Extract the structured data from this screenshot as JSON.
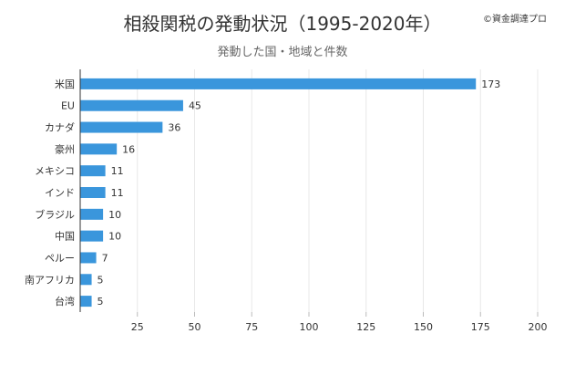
{
  "title": "相殺関税の発動状況（1995-2020年）",
  "subtitle": "発動した国・地域と件数",
  "copyright": "©資金調達プロ",
  "colors": {
    "bar": "#3a96dc",
    "grid": "#e8e8e8",
    "axis": "#333333",
    "text": "#333333"
  },
  "chart_data": {
    "type": "bar",
    "orientation": "horizontal",
    "categories": [
      "米国",
      "EU",
      "カナダ",
      "豪州",
      "メキシコ",
      "インド",
      "ブラジル",
      "中国",
      "ペルー",
      "南アフリカ",
      "台湾"
    ],
    "values": [
      173,
      45,
      36,
      16,
      11,
      11,
      10,
      10,
      7,
      5,
      5
    ],
    "xlim": [
      0,
      200
    ],
    "xticks": [
      25,
      50,
      75,
      100,
      125,
      150,
      175,
      200
    ],
    "grid": true,
    "legend": "none",
    "data_labels": true
  }
}
